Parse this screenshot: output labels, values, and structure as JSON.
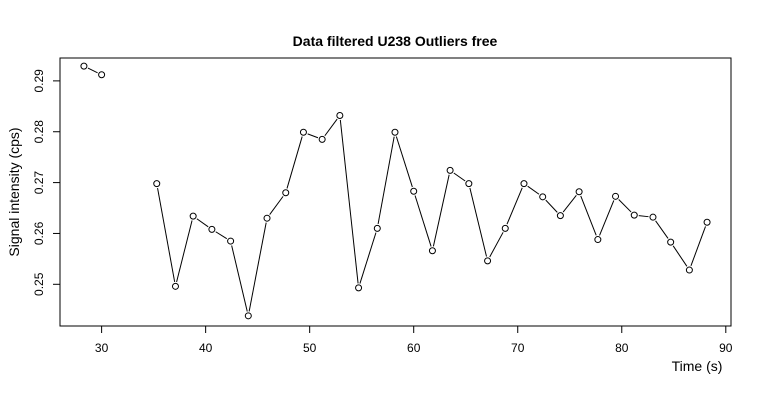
{
  "chart_data": {
    "type": "line",
    "title": "Data filtered U238 Outliers free",
    "xlabel": "Time (s)",
    "ylabel": "Signal intensity (cps)",
    "xlim": [
      26,
      90.5
    ],
    "ylim": [
      0.2418,
      0.2945
    ],
    "xticks": [
      "30",
      "40",
      "50",
      "60",
      "70",
      "80",
      "90"
    ],
    "xtick_values": [
      30,
      40,
      50,
      60,
      70,
      80,
      90
    ],
    "yticks": [
      "0.25",
      "0.26",
      "0.27",
      "0.28",
      "0.29"
    ],
    "ytick_values": [
      0.25,
      0.26,
      0.27,
      0.28,
      0.29
    ],
    "grid": false,
    "legend": "none",
    "marker": "open-circle",
    "color": "#000000",
    "series": [
      {
        "segments": [
          [
            {
              "x": 28.3,
              "y": 0.2929
            },
            {
              "x": 30.0,
              "y": 0.2912
            }
          ],
          [
            {
              "x": 35.3,
              "y": 0.2698
            },
            {
              "x": 37.1,
              "y": 0.2496
            },
            {
              "x": 38.8,
              "y": 0.2634
            },
            {
              "x": 40.6,
              "y": 0.2608
            },
            {
              "x": 42.4,
              "y": 0.2585
            },
            {
              "x": 44.1,
              "y": 0.2438
            },
            {
              "x": 45.9,
              "y": 0.263
            },
            {
              "x": 47.7,
              "y": 0.268
            },
            {
              "x": 49.4,
              "y": 0.2799
            },
            {
              "x": 51.2,
              "y": 0.2785
            },
            {
              "x": 52.9,
              "y": 0.2832
            },
            {
              "x": 54.7,
              "y": 0.2493
            },
            {
              "x": 56.5,
              "y": 0.261
            },
            {
              "x": 58.2,
              "y": 0.2799
            },
            {
              "x": 60.0,
              "y": 0.2683
            },
            {
              "x": 61.8,
              "y": 0.2566
            },
            {
              "x": 63.5,
              "y": 0.2724
            },
            {
              "x": 65.3,
              "y": 0.2698
            },
            {
              "x": 67.1,
              "y": 0.2546
            },
            {
              "x": 68.8,
              "y": 0.261
            },
            {
              "x": 70.6,
              "y": 0.2698
            },
            {
              "x": 72.4,
              "y": 0.2672
            },
            {
              "x": 74.1,
              "y": 0.2635
            },
            {
              "x": 75.9,
              "y": 0.2682
            },
            {
              "x": 77.7,
              "y": 0.2588
            },
            {
              "x": 79.4,
              "y": 0.2673
            },
            {
              "x": 81.2,
              "y": 0.2636
            },
            {
              "x": 83.0,
              "y": 0.2632
            },
            {
              "x": 84.7,
              "y": 0.2583
            },
            {
              "x": 86.5,
              "y": 0.2528
            },
            {
              "x": 88.2,
              "y": 0.2622
            }
          ]
        ]
      }
    ]
  }
}
